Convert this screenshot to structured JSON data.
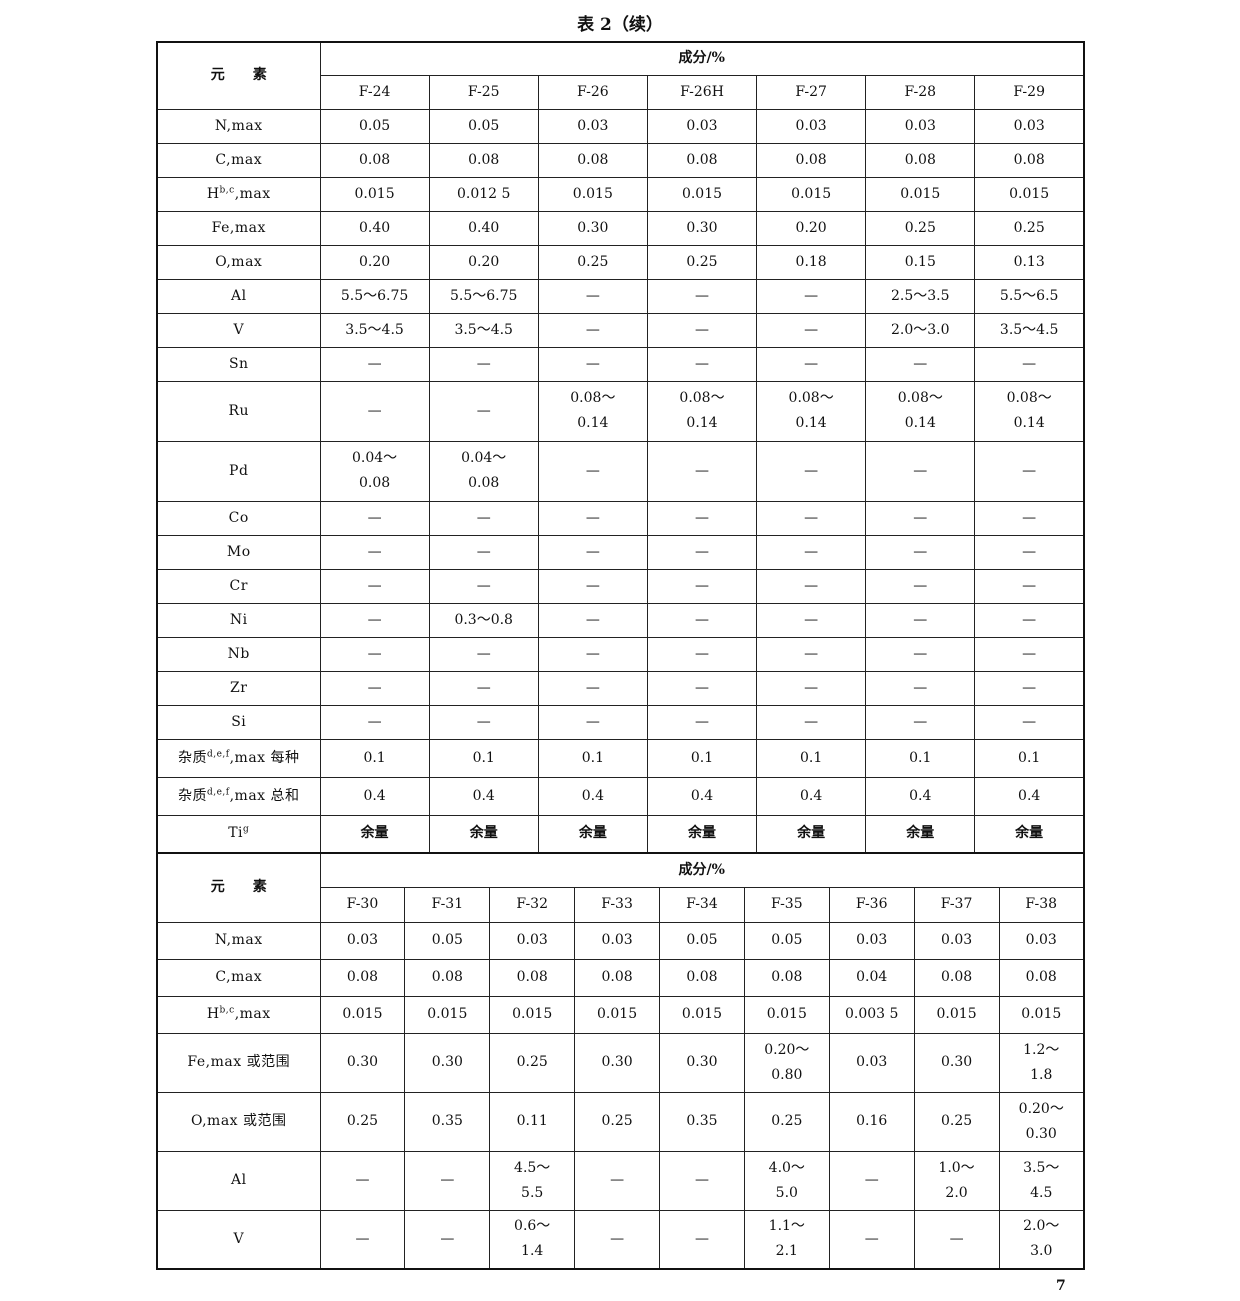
{
  "title": "表 2（续）",
  "tables": [
    {
      "corner": "元　　素",
      "group_header": "成分/%",
      "columns": [
        "F-24",
        "F-25",
        "F-26",
        "F-26H",
        "F-27",
        "F-28",
        "F-29"
      ],
      "rows": [
        {
          "label": [
            {
              "t": "N,max"
            }
          ],
          "cells": [
            "0.05",
            "0.05",
            "0.03",
            "0.03",
            "0.03",
            "0.03",
            "0.03"
          ]
        },
        {
          "label": [
            {
              "t": "C,max"
            }
          ],
          "cells": [
            "0.08",
            "0.08",
            "0.08",
            "0.08",
            "0.08",
            "0.08",
            "0.08"
          ]
        },
        {
          "label": [
            {
              "t": "H"
            },
            {
              "sup": "b,c"
            },
            {
              "t": ",max"
            }
          ],
          "cells": [
            "0.015",
            "0.012 5",
            "0.015",
            "0.015",
            "0.015",
            "0.015",
            "0.015"
          ]
        },
        {
          "label": [
            {
              "t": "Fe,max"
            }
          ],
          "cells": [
            "0.40",
            "0.40",
            "0.30",
            "0.30",
            "0.20",
            "0.25",
            "0.25"
          ]
        },
        {
          "label": [
            {
              "t": "O,max"
            }
          ],
          "cells": [
            "0.20",
            "0.20",
            "0.25",
            "0.25",
            "0.18",
            "0.15",
            "0.13"
          ]
        },
        {
          "label": [
            {
              "t": "Al"
            }
          ],
          "cells": [
            "5.5～6.75",
            "5.5～6.75",
            "—",
            "—",
            "—",
            "2.5～3.5",
            "5.5～6.5"
          ]
        },
        {
          "label": [
            {
              "t": "V"
            }
          ],
          "cells": [
            "3.5～4.5",
            "3.5～4.5",
            "—",
            "—",
            "—",
            "2.0～3.0",
            "3.5～4.5"
          ]
        },
        {
          "label": [
            {
              "t": "Sn"
            }
          ],
          "cells": [
            "—",
            "—",
            "—",
            "—",
            "—",
            "—",
            "—"
          ]
        },
        {
          "label": [
            {
              "t": "Ru"
            }
          ],
          "cells": [
            "—",
            "—",
            [
              "0.08～",
              "0.14"
            ],
            [
              "0.08～",
              "0.14"
            ],
            [
              "0.08～",
              "0.14"
            ],
            [
              "0.08～",
              "0.14"
            ],
            [
              "0.08～",
              "0.14"
            ]
          ]
        },
        {
          "label": [
            {
              "t": "Pd"
            }
          ],
          "cells": [
            [
              "0.04～",
              "0.08"
            ],
            [
              "0.04～",
              "0.08"
            ],
            "—",
            "—",
            "—",
            "—",
            "—"
          ]
        },
        {
          "label": [
            {
              "t": "Co"
            }
          ],
          "cells": [
            "—",
            "—",
            "—",
            "—",
            "—",
            "—",
            "—"
          ]
        },
        {
          "label": [
            {
              "t": "Mo"
            }
          ],
          "cells": [
            "—",
            "—",
            "—",
            "—",
            "—",
            "—",
            "—"
          ]
        },
        {
          "label": [
            {
              "t": "Cr"
            }
          ],
          "cells": [
            "—",
            "—",
            "—",
            "—",
            "—",
            "—",
            "—"
          ]
        },
        {
          "label": [
            {
              "t": "Ni"
            }
          ],
          "cells": [
            "—",
            "0.3～0.8",
            "—",
            "—",
            "—",
            "—",
            "—"
          ]
        },
        {
          "label": [
            {
              "t": "Nb"
            }
          ],
          "cells": [
            "—",
            "—",
            "—",
            "—",
            "—",
            "—",
            "—"
          ]
        },
        {
          "label": [
            {
              "t": "Zr"
            }
          ],
          "cells": [
            "—",
            "—",
            "—",
            "—",
            "—",
            "—",
            "—"
          ]
        },
        {
          "label": [
            {
              "t": "Si"
            }
          ],
          "cells": [
            "—",
            "—",
            "—",
            "—",
            "—",
            "—",
            "—"
          ]
        },
        {
          "label": [
            {
              "t": "杂质"
            },
            {
              "sup": "d,e,f"
            },
            {
              "t": ",max 每种"
            }
          ],
          "cells": [
            "0.1",
            "0.1",
            "0.1",
            "0.1",
            "0.1",
            "0.1",
            "0.1"
          ]
        },
        {
          "label": [
            {
              "t": "杂质"
            },
            {
              "sup": "d,e,f"
            },
            {
              "t": ",max 总和"
            }
          ],
          "cells": [
            "0.4",
            "0.4",
            "0.4",
            "0.4",
            "0.4",
            "0.4",
            "0.4"
          ]
        },
        {
          "label": [
            {
              "t": "Ti"
            },
            {
              "sup": "g"
            }
          ],
          "cells": [
            "余量",
            "余量",
            "余量",
            "余量",
            "余量",
            "余量",
            "余量"
          ]
        }
      ]
    },
    {
      "corner": "元　　素",
      "group_header": "成分/%",
      "columns": [
        "F-30",
        "F-31",
        "F-32",
        "F-33",
        "F-34",
        "F-35",
        "F-36",
        "F-37",
        "F-38"
      ],
      "rows": [
        {
          "label": [
            {
              "t": "N,max"
            }
          ],
          "cells": [
            "0.03",
            "0.05",
            "0.03",
            "0.03",
            "0.05",
            "0.05",
            "0.03",
            "0.03",
            "0.03"
          ]
        },
        {
          "label": [
            {
              "t": "C,max"
            }
          ],
          "cells": [
            "0.08",
            "0.08",
            "0.08",
            "0.08",
            "0.08",
            "0.08",
            "0.04",
            "0.08",
            "0.08"
          ]
        },
        {
          "label": [
            {
              "t": "H"
            },
            {
              "sup": "b,c"
            },
            {
              "t": ",max"
            }
          ],
          "cells": [
            "0.015",
            "0.015",
            "0.015",
            "0.015",
            "0.015",
            "0.015",
            "0.003 5",
            "0.015",
            "0.015"
          ]
        },
        {
          "label": [
            {
              "t": "Fe,max 或范围"
            }
          ],
          "cells": [
            "0.30",
            "0.30",
            "0.25",
            "0.30",
            "0.30",
            [
              "0.20～",
              "0.80"
            ],
            "0.03",
            "0.30",
            [
              "1.2～",
              "1.8"
            ]
          ]
        },
        {
          "label": [
            {
              "t": "O,max 或范围"
            }
          ],
          "cells": [
            "0.25",
            "0.35",
            "0.11",
            "0.25",
            "0.35",
            "0.25",
            "0.16",
            "0.25",
            [
              "0.20～",
              "0.30"
            ]
          ]
        },
        {
          "label": [
            {
              "t": "Al"
            }
          ],
          "cells": [
            "—",
            "—",
            [
              "4.5～",
              "5.5"
            ],
            "—",
            "—",
            [
              "4.0～",
              "5.0"
            ],
            "—",
            [
              "1.0～",
              "2.0"
            ],
            [
              "3.5～",
              "4.5"
            ]
          ]
        },
        {
          "label": [
            {
              "t": "V"
            }
          ],
          "cells": [
            "—",
            "—",
            [
              "0.6～",
              "1.4"
            ],
            "—",
            "—",
            [
              "1.1～",
              "2.1"
            ],
            "—",
            "—",
            [
              "2.0～",
              "3.0"
            ]
          ]
        }
      ]
    }
  ],
  "page_number": "7"
}
